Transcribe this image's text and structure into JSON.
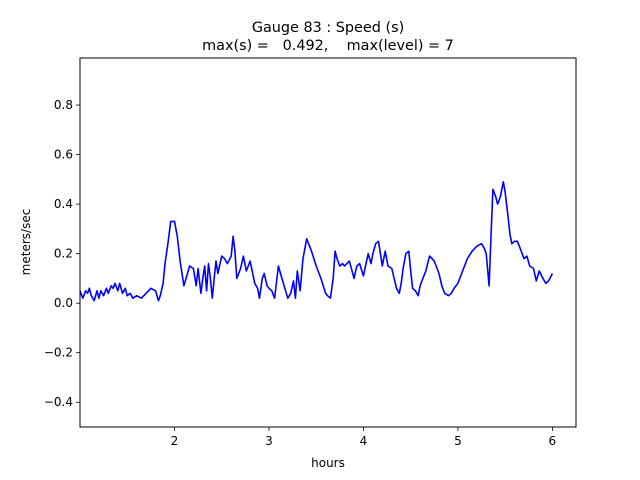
{
  "chart_data": {
    "type": "line",
    "title": "Gauge 83 : Speed (s)",
    "subtitle": "max(s) =   0.492,    max(level) = 7",
    "xlabel": "hours",
    "ylabel": "meters/sec",
    "xlim": [
      1.0,
      6.25
    ],
    "ylim": [
      -0.5,
      0.99
    ],
    "xticks": [
      2,
      3,
      4,
      5,
      6
    ],
    "yticks": [
      -0.4,
      -0.2,
      0.0,
      0.2,
      0.4,
      0.6,
      0.8
    ],
    "xtick_labels": [
      "2",
      "3",
      "4",
      "5",
      "6"
    ],
    "ytick_labels": [
      "−0.4",
      "−0.2",
      "0.0",
      "0.2",
      "0.4",
      "0.6",
      "0.8"
    ],
    "grid": false,
    "series": [
      {
        "color": "#0000ff",
        "x": [
          1.0,
          1.03,
          1.06,
          1.08,
          1.1,
          1.12,
          1.15,
          1.18,
          1.2,
          1.22,
          1.25,
          1.28,
          1.3,
          1.33,
          1.35,
          1.37,
          1.4,
          1.42,
          1.45,
          1.48,
          1.5,
          1.53,
          1.56,
          1.6,
          1.65,
          1.7,
          1.75,
          1.8,
          1.83,
          1.85,
          1.88,
          1.9,
          1.93,
          1.96,
          2.0,
          2.03,
          2.06,
          2.08,
          2.1,
          2.13,
          2.16,
          2.2,
          2.23,
          2.25,
          2.28,
          2.3,
          2.32,
          2.34,
          2.36,
          2.38,
          2.4,
          2.42,
          2.44,
          2.46,
          2.5,
          2.53,
          2.56,
          2.6,
          2.62,
          2.64,
          2.66,
          2.7,
          2.73,
          2.76,
          2.8,
          2.85,
          2.88,
          2.9,
          2.93,
          2.95,
          2.98,
          3.0,
          3.03,
          3.06,
          3.1,
          3.13,
          3.16,
          3.2,
          3.23,
          3.26,
          3.28,
          3.3,
          3.33,
          3.36,
          3.4,
          3.45,
          3.5,
          3.55,
          3.6,
          3.62,
          3.65,
          3.68,
          3.7,
          3.72,
          3.75,
          3.78,
          3.8,
          3.85,
          3.88,
          3.9,
          3.93,
          3.96,
          4.0,
          4.05,
          4.08,
          4.1,
          4.13,
          4.16,
          4.2,
          4.23,
          4.26,
          4.3,
          4.35,
          4.38,
          4.4,
          4.42,
          4.45,
          4.48,
          4.5,
          4.52,
          4.55,
          4.58,
          4.6,
          4.63,
          4.66,
          4.7,
          4.75,
          4.8,
          4.83,
          4.86,
          4.9,
          4.93,
          4.96,
          5.0,
          5.05,
          5.1,
          5.15,
          5.2,
          5.25,
          5.28,
          5.3,
          5.33,
          5.35,
          5.37,
          5.4,
          5.42,
          5.45,
          5.48,
          5.5,
          5.53,
          5.55,
          5.57,
          5.6,
          5.63,
          5.66,
          5.7,
          5.73,
          5.76,
          5.8,
          5.83,
          5.86,
          5.9,
          5.93,
          5.96,
          6.0
        ],
        "y": [
          0.05,
          0.02,
          0.05,
          0.04,
          0.06,
          0.03,
          0.01,
          0.05,
          0.02,
          0.05,
          0.03,
          0.06,
          0.04,
          0.07,
          0.06,
          0.08,
          0.05,
          0.08,
          0.04,
          0.06,
          0.03,
          0.04,
          0.02,
          0.03,
          0.02,
          0.04,
          0.06,
          0.05,
          0.01,
          0.03,
          0.08,
          0.16,
          0.24,
          0.33,
          0.33,
          0.27,
          0.17,
          0.12,
          0.07,
          0.11,
          0.15,
          0.14,
          0.07,
          0.14,
          0.04,
          0.1,
          0.15,
          0.05,
          0.16,
          0.1,
          0.02,
          0.1,
          0.17,
          0.12,
          0.19,
          0.18,
          0.16,
          0.19,
          0.27,
          0.21,
          0.1,
          0.14,
          0.19,
          0.13,
          0.17,
          0.08,
          0.06,
          0.02,
          0.1,
          0.12,
          0.07,
          0.06,
          0.05,
          0.02,
          0.15,
          0.11,
          0.07,
          0.02,
          0.04,
          0.09,
          0.02,
          0.13,
          0.05,
          0.18,
          0.26,
          0.21,
          0.15,
          0.1,
          0.04,
          0.03,
          0.02,
          0.1,
          0.21,
          0.18,
          0.15,
          0.16,
          0.15,
          0.17,
          0.13,
          0.1,
          0.15,
          0.16,
          0.11,
          0.2,
          0.16,
          0.2,
          0.24,
          0.25,
          0.15,
          0.21,
          0.15,
          0.14,
          0.06,
          0.04,
          0.08,
          0.14,
          0.2,
          0.21,
          0.13,
          0.06,
          0.05,
          0.03,
          0.07,
          0.1,
          0.13,
          0.19,
          0.17,
          0.12,
          0.07,
          0.04,
          0.03,
          0.04,
          0.06,
          0.08,
          0.13,
          0.18,
          0.21,
          0.23,
          0.24,
          0.22,
          0.2,
          0.07,
          0.27,
          0.46,
          0.43,
          0.4,
          0.43,
          0.49,
          0.45,
          0.35,
          0.28,
          0.24,
          0.25,
          0.25,
          0.22,
          0.18,
          0.19,
          0.15,
          0.14,
          0.09,
          0.13,
          0.1,
          0.08,
          0.09,
          0.12
        ]
      }
    ]
  }
}
